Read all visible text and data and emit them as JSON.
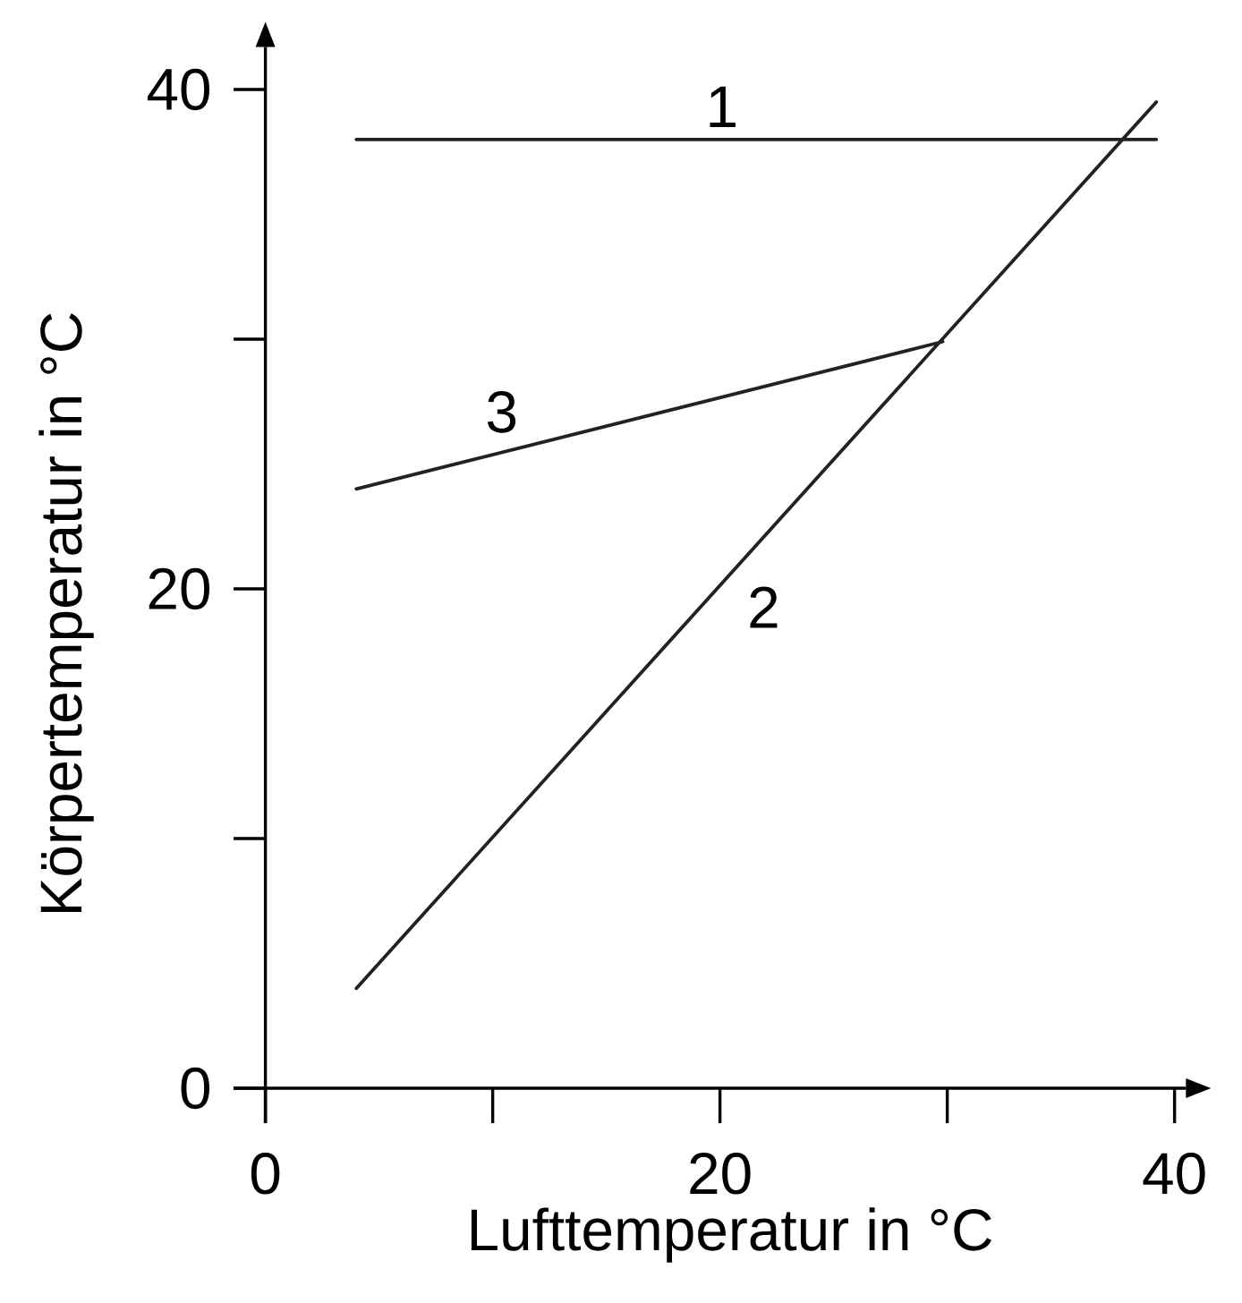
{
  "chart_data": {
    "type": "line",
    "xlabel": "Lufttemperatur in °C",
    "ylabel": "Körpertemperatur in °C",
    "xlim": [
      -1.4,
      40.5
    ],
    "ylim": [
      -1.4,
      41.7
    ],
    "xticks": [
      0,
      20,
      40
    ],
    "yticks": [
      0,
      20,
      40
    ],
    "series": [
      {
        "name": "1",
        "color": "#222222",
        "x": [
          4,
          39.2
        ],
        "values": [
          38,
          38
        ]
      },
      {
        "name": "2",
        "color": "#222222",
        "x": [
          4,
          39.2
        ],
        "values": [
          4,
          39.5
        ]
      },
      {
        "name": "3",
        "color": "#222222",
        "x": [
          4,
          29.8
        ],
        "values": [
          24,
          29.9
        ]
      }
    ],
    "grid": false,
    "legend": false,
    "marker": "none",
    "line_style": "solid"
  }
}
